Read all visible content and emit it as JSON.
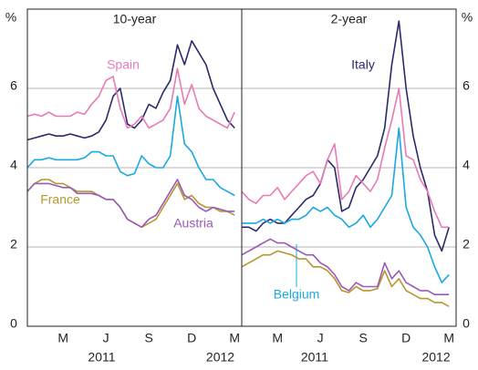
{
  "chart_data": [
    {
      "type": "line",
      "title": "10-year",
      "y_label": "%",
      "x": [
        0,
        0.5,
        1,
        1.5,
        2,
        2.5,
        3,
        3.5,
        4,
        4.5,
        5,
        5.5,
        6,
        6.5,
        7,
        7.5,
        8,
        8.5,
        9,
        9.5,
        10,
        10.5,
        11,
        11.5,
        12,
        12.5,
        13,
        13.5,
        14,
        14.5
      ],
      "xlim": [
        0,
        15
      ],
      "xticks": [
        {
          "value": 2.5,
          "label": "M"
        },
        {
          "value": 5.5,
          "label": "J"
        },
        {
          "value": 8.5,
          "label": "S"
        },
        {
          "value": 11.5,
          "label": "D"
        },
        {
          "value": 14.5,
          "label": "M"
        }
      ],
      "year_ticks": [
        {
          "value": 5.2,
          "label": "2011"
        },
        {
          "value": 13.5,
          "label": "2012"
        }
      ],
      "ylim": [
        0,
        8
      ],
      "yticks": [
        0,
        2,
        4,
        6
      ],
      "grid": true,
      "series": [
        {
          "color": "#2b2a6b",
          "values": [
            4.7,
            4.75,
            4.8,
            4.85,
            4.8,
            4.8,
            4.85,
            4.8,
            4.75,
            4.8,
            4.9,
            5.2,
            5.8,
            6.0,
            5.1,
            5.0,
            5.2,
            5.6,
            5.5,
            5.9,
            6.2,
            7.1,
            6.6,
            7.2,
            6.9,
            6.6,
            6.0,
            5.6,
            5.2,
            5.0
          ]
        },
        {
          "name": "Spain",
          "color": "#e87ab4",
          "values": [
            5.3,
            5.35,
            5.3,
            5.4,
            5.3,
            5.3,
            5.3,
            5.4,
            5.35,
            5.6,
            5.8,
            6.2,
            6.3,
            5.5,
            5.0,
            5.1,
            5.3,
            5.0,
            5.1,
            5.2,
            5.5,
            6.5,
            5.6,
            6.1,
            5.5,
            5.3,
            5.2,
            5.1,
            5.0,
            5.4
          ]
        },
        {
          "color": "#1aa8e0",
          "values": [
            4.0,
            4.2,
            4.2,
            4.25,
            4.2,
            4.2,
            4.2,
            4.2,
            4.25,
            4.4,
            4.4,
            4.3,
            4.3,
            3.9,
            3.8,
            3.85,
            4.3,
            4.1,
            4.0,
            4.0,
            4.3,
            5.8,
            4.6,
            4.4,
            4.0,
            3.7,
            3.7,
            3.5,
            3.4,
            3.3
          ]
        },
        {
          "name": "France",
          "color": "#b8962e",
          "values": [
            3.4,
            3.6,
            3.7,
            3.7,
            3.6,
            3.6,
            3.5,
            3.4,
            3.4,
            3.4,
            3.3,
            3.2,
            3.2,
            3.0,
            2.7,
            2.6,
            2.5,
            2.6,
            2.7,
            3.0,
            3.3,
            3.6,
            3.2,
            3.3,
            3.1,
            3.0,
            3.0,
            2.9,
            2.9,
            2.8
          ]
        },
        {
          "name": "Austria",
          "color": "#9b59b6",
          "values": [
            3.4,
            3.6,
            3.6,
            3.6,
            3.55,
            3.5,
            3.5,
            3.35,
            3.35,
            3.35,
            3.3,
            3.2,
            3.2,
            3.0,
            2.7,
            2.6,
            2.5,
            2.7,
            2.8,
            3.1,
            3.4,
            3.7,
            3.3,
            3.2,
            3.0,
            2.9,
            3.0,
            2.95,
            2.9,
            2.9
          ]
        }
      ]
    },
    {
      "type": "line",
      "title": "2-year",
      "y_label": "%",
      "x": [
        0,
        0.5,
        1,
        1.5,
        2,
        2.5,
        3,
        3.5,
        4,
        4.5,
        5,
        5.5,
        6,
        6.5,
        7,
        7.5,
        8,
        8.5,
        9,
        9.5,
        10,
        10.5,
        11,
        11.5,
        12,
        12.5,
        13,
        13.5,
        14,
        14.5
      ],
      "xlim": [
        0,
        15
      ],
      "xticks": [
        {
          "value": 2.5,
          "label": "M"
        },
        {
          "value": 5.5,
          "label": "J"
        },
        {
          "value": 8.5,
          "label": "S"
        },
        {
          "value": 11.5,
          "label": "D"
        },
        {
          "value": 14.5,
          "label": "M"
        }
      ],
      "year_ticks": [
        {
          "value": 5.1,
          "label": "2011"
        },
        {
          "value": 13.6,
          "label": "2012"
        }
      ],
      "ylim": [
        0,
        8
      ],
      "yticks": [
        0,
        2,
        4,
        6
      ],
      "grid": true,
      "series": [
        {
          "name": "Italy",
          "color": "#2b2a6b",
          "values": [
            2.5,
            2.5,
            2.4,
            2.6,
            2.7,
            2.6,
            2.6,
            2.8,
            3.0,
            3.2,
            3.3,
            3.6,
            4.2,
            4.0,
            2.9,
            3.0,
            3.5,
            3.7,
            4.0,
            4.3,
            5.0,
            6.6,
            7.7,
            6.0,
            4.8,
            4.0,
            3.4,
            2.3,
            1.9,
            2.5
          ]
        },
        {
          "color": "#e87ab4",
          "values": [
            3.4,
            3.2,
            3.1,
            3.3,
            3.3,
            3.5,
            3.2,
            3.4,
            3.6,
            3.8,
            3.9,
            3.6,
            4.2,
            4.6,
            3.2,
            3.4,
            3.8,
            3.6,
            3.4,
            3.7,
            4.5,
            5.2,
            6.0,
            4.3,
            4.2,
            3.7,
            3.4,
            2.9,
            2.5,
            2.5
          ]
        },
        {
          "name": "Belgium",
          "color": "#1aa8e0",
          "values": [
            2.6,
            2.6,
            2.6,
            2.7,
            2.6,
            2.7,
            2.6,
            2.7,
            2.7,
            2.8,
            3.0,
            2.9,
            3.0,
            2.8,
            2.7,
            2.5,
            2.6,
            2.8,
            2.5,
            2.7,
            3.0,
            3.3,
            5.0,
            3.0,
            2.5,
            2.3,
            2.0,
            1.5,
            1.1,
            1.3
          ]
        },
        {
          "color": "#b8962e",
          "values": [
            1.5,
            1.6,
            1.7,
            1.8,
            1.8,
            1.9,
            1.85,
            1.8,
            1.7,
            1.7,
            1.5,
            1.5,
            1.4,
            1.2,
            0.9,
            0.85,
            1.0,
            0.9,
            0.9,
            0.95,
            1.4,
            1.0,
            1.2,
            0.9,
            0.8,
            0.7,
            0.7,
            0.6,
            0.6,
            0.5
          ]
        },
        {
          "color": "#9b59b6",
          "values": [
            1.8,
            1.9,
            2.0,
            2.1,
            2.2,
            2.1,
            2.1,
            2.0,
            1.9,
            1.8,
            1.8,
            1.6,
            1.5,
            1.3,
            1.0,
            0.9,
            1.1,
            1.0,
            1.0,
            1.0,
            1.6,
            1.2,
            1.4,
            1.1,
            1.0,
            0.9,
            0.9,
            0.8,
            0.8,
            0.8
          ]
        }
      ]
    }
  ]
}
